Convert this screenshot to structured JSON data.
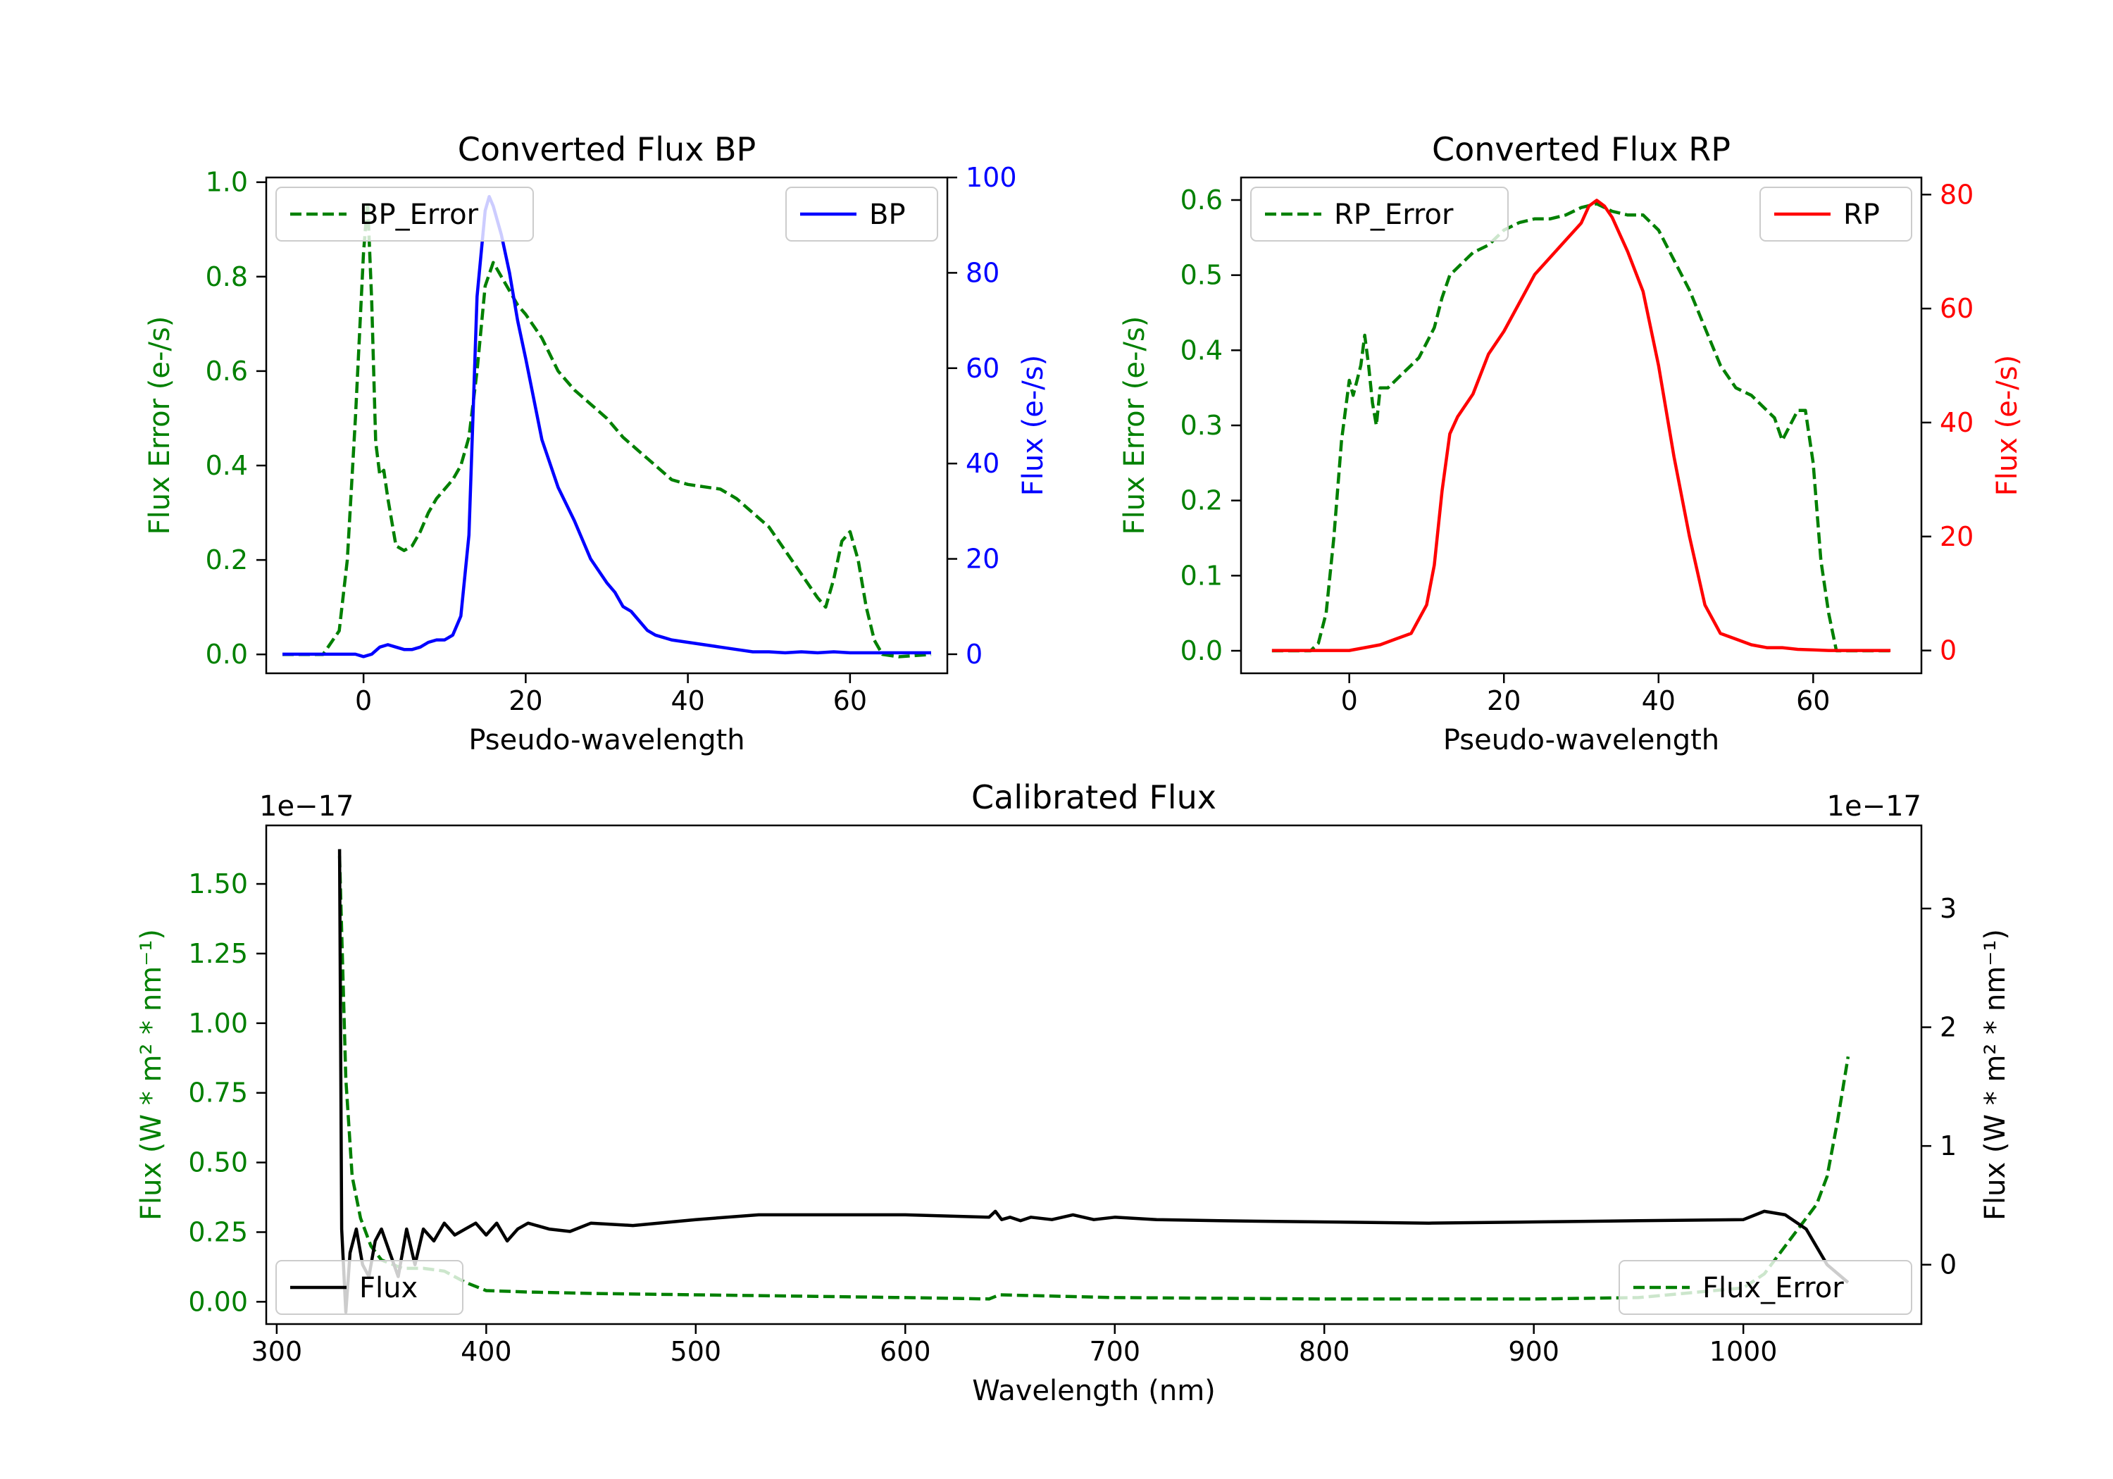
{
  "colors": {
    "error": "#008000",
    "bp": "#0000ff",
    "rp": "#ff0000",
    "flux": "#000000"
  },
  "chart_data": [
    {
      "type": "line",
      "title": "Converted Flux BP",
      "xlabel": "Pseudo-wavelength",
      "ylabel_left": "Flux Error (e-/s)",
      "ylabel_right": "Flux (e-/s)",
      "xlim": [
        -12,
        72
      ],
      "xticks": [
        0,
        20,
        40,
        60
      ],
      "ylim_left": [
        -0.04,
        1.01
      ],
      "yticks_left": [
        "0.0",
        "0.2",
        "0.4",
        "0.6",
        "0.8",
        "1.0"
      ],
      "ylim_right": [
        -4,
        100
      ],
      "yticks_right": [
        "0",
        "20",
        "40",
        "60",
        "80",
        "100"
      ],
      "series": [
        {
          "name": "BP_Error",
          "axis": "left",
          "style": "dashed",
          "color": "error",
          "x": [
            -10,
            -5,
            -3,
            -2,
            -1,
            0,
            0.5,
            1,
            1.5,
            2,
            2.5,
            3,
            4,
            5,
            6,
            7,
            8,
            9,
            10,
            11,
            12,
            13,
            14,
            15,
            16,
            17,
            18,
            19,
            20,
            22,
            24,
            26,
            28,
            30,
            32,
            34,
            36,
            38,
            40,
            42,
            44,
            46,
            48,
            50,
            52,
            54,
            56,
            57,
            58,
            59,
            60,
            61,
            62,
            63,
            64,
            66,
            70
          ],
          "values": [
            0.0,
            0.0,
            0.05,
            0.2,
            0.5,
            0.85,
            0.96,
            0.75,
            0.45,
            0.38,
            0.39,
            0.33,
            0.23,
            0.22,
            0.23,
            0.26,
            0.3,
            0.33,
            0.35,
            0.37,
            0.4,
            0.46,
            0.6,
            0.78,
            0.83,
            0.8,
            0.77,
            0.74,
            0.72,
            0.67,
            0.6,
            0.56,
            0.53,
            0.5,
            0.46,
            0.43,
            0.4,
            0.37,
            0.36,
            0.355,
            0.35,
            0.33,
            0.3,
            0.27,
            0.22,
            0.17,
            0.12,
            0.1,
            0.16,
            0.24,
            0.26,
            0.2,
            0.1,
            0.03,
            0.0,
            -0.005,
            0.0
          ]
        },
        {
          "name": "BP",
          "axis": "right",
          "style": "solid",
          "color": "bp",
          "x": [
            -10,
            -5,
            -1,
            0,
            1,
            2,
            3,
            4,
            5,
            6,
            7,
            8,
            9,
            10,
            11,
            12,
            13,
            14,
            15,
            15.5,
            16,
            17,
            18,
            19,
            20,
            22,
            24,
            26,
            28,
            30,
            31,
            32,
            33,
            34,
            35,
            36,
            37,
            38,
            40,
            42,
            44,
            46,
            48,
            50,
            52,
            54,
            56,
            58,
            60,
            62,
            64,
            66,
            70
          ],
          "values": [
            0,
            0,
            0,
            -0.5,
            0,
            1.5,
            2,
            1.5,
            1,
            1,
            1.5,
            2.5,
            3,
            3,
            4,
            8,
            25,
            75,
            93,
            96,
            94,
            88,
            80,
            70,
            62,
            45,
            35,
            28,
            20,
            15,
            13,
            10,
            9,
            7,
            5,
            4,
            3.5,
            3,
            2.5,
            2,
            1.5,
            1,
            0.5,
            0.5,
            0.3,
            0.5,
            0.3,
            0.5,
            0.3,
            0.3,
            0.3,
            0.3,
            0.3
          ]
        }
      ],
      "legend": [
        {
          "label": "BP_Error",
          "position": "upper-left"
        },
        {
          "label": "BP",
          "position": "upper-right"
        }
      ]
    },
    {
      "type": "line",
      "title": "Converted Flux RP",
      "xlabel": "Pseudo-wavelength",
      "ylabel_left": "Flux Error (e-/s)",
      "ylabel_right": "Flux (e-/s)",
      "xlim": [
        -14,
        74
      ],
      "xticks": [
        0,
        20,
        40,
        60
      ],
      "ylim_left": [
        -0.03,
        0.63
      ],
      "yticks_left": [
        "0.0",
        "0.1",
        "0.2",
        "0.3",
        "0.4",
        "0.5",
        "0.6"
      ],
      "ylim_right": [
        -4,
        83
      ],
      "yticks_right": [
        "0",
        "20",
        "40",
        "60",
        "80"
      ],
      "series": [
        {
          "name": "RP_Error",
          "axis": "left",
          "style": "dashed",
          "color": "error",
          "x": [
            -10,
            -5,
            -4,
            -3,
            -2,
            -1,
            0,
            0.5,
            1,
            1.5,
            2,
            2.5,
            3,
            3.5,
            4,
            5,
            6,
            7,
            8,
            9,
            10,
            11,
            12,
            13,
            14,
            15,
            16,
            18,
            20,
            22,
            24,
            26,
            28,
            30,
            32,
            34,
            36,
            38,
            40,
            42,
            44,
            46,
            48,
            50,
            52,
            54,
            55,
            56,
            57,
            58,
            59,
            60,
            61,
            62,
            63,
            64,
            66,
            70
          ],
          "values": [
            0.0,
            0.0,
            0.01,
            0.05,
            0.15,
            0.28,
            0.36,
            0.34,
            0.36,
            0.38,
            0.42,
            0.38,
            0.33,
            0.3,
            0.35,
            0.35,
            0.36,
            0.37,
            0.38,
            0.39,
            0.41,
            0.43,
            0.47,
            0.5,
            0.51,
            0.52,
            0.53,
            0.54,
            0.56,
            0.57,
            0.575,
            0.575,
            0.58,
            0.59,
            0.595,
            0.585,
            0.58,
            0.58,
            0.56,
            0.52,
            0.48,
            0.43,
            0.38,
            0.35,
            0.34,
            0.32,
            0.31,
            0.28,
            0.3,
            0.32,
            0.32,
            0.25,
            0.12,
            0.05,
            0.0,
            0.0,
            0.0,
            0.0
          ]
        },
        {
          "name": "RP",
          "axis": "right",
          "style": "solid",
          "color": "rp",
          "x": [
            -10,
            -5,
            0,
            2,
            4,
            6,
            8,
            10,
            11,
            12,
            13,
            14,
            16,
            18,
            20,
            22,
            24,
            26,
            28,
            30,
            31,
            32,
            33,
            34,
            35,
            36,
            38,
            40,
            42,
            44,
            46,
            48,
            50,
            52,
            54,
            56,
            58,
            60,
            62,
            66,
            70
          ],
          "values": [
            0,
            0,
            0,
            0.5,
            1,
            2,
            3,
            8,
            15,
            28,
            38,
            41,
            45,
            52,
            56,
            61,
            66,
            69,
            72,
            75,
            78,
            79,
            78,
            76,
            73,
            70,
            63,
            50,
            34,
            20,
            8,
            3,
            2,
            1,
            0.5,
            0.5,
            0.2,
            0.1,
            0,
            0,
            0
          ]
        }
      ],
      "legend": [
        {
          "label": "RP_Error",
          "position": "upper-left"
        },
        {
          "label": "RP",
          "position": "upper-right"
        }
      ]
    },
    {
      "type": "line",
      "title": "Calibrated Flux",
      "xlabel": "Wavelength (nm)",
      "ylabel_left": "Flux (W * m² * nm⁻¹)",
      "ylabel_right": "Flux (W * m² * nm⁻¹)",
      "offset_left": "1e−17",
      "offset_right": "1e−17",
      "xlim": [
        295,
        1085
      ],
      "xticks": [
        300,
        400,
        500,
        600,
        700,
        800,
        900,
        1000
      ],
      "ylim_left": [
        -0.08,
        1.71
      ],
      "yticks_left": [
        "0.00",
        "0.25",
        "0.50",
        "0.75",
        "1.00",
        "1.25",
        "1.50"
      ],
      "ylim_right": [
        -0.5,
        3.7
      ],
      "yticks_right": [
        "0",
        "1",
        "2",
        "3"
      ],
      "series": [
        {
          "name": "Flux_Error",
          "axis": "left",
          "style": "dashed",
          "color": "error",
          "x": [
            330,
            333,
            336,
            340,
            345,
            350,
            360,
            370,
            380,
            390,
            400,
            420,
            450,
            500,
            550,
            600,
            640,
            645,
            700,
            800,
            900,
            950,
            1000,
            1010,
            1020,
            1030,
            1035,
            1040,
            1045,
            1050
          ],
          "values": [
            1.6,
            0.8,
            0.45,
            0.3,
            0.2,
            0.15,
            0.12,
            0.12,
            0.11,
            0.07,
            0.04,
            0.035,
            0.03,
            0.025,
            0.02,
            0.015,
            0.01,
            0.025,
            0.015,
            0.01,
            0.01,
            0.015,
            0.05,
            0.1,
            0.2,
            0.3,
            0.35,
            0.45,
            0.65,
            0.88
          ]
        },
        {
          "name": "Flux",
          "axis": "right",
          "style": "solid",
          "color": "flux",
          "x": [
            330,
            331,
            333,
            335,
            338,
            341,
            344,
            347,
            350,
            354,
            358,
            362,
            366,
            370,
            375,
            380,
            385,
            390,
            395,
            400,
            405,
            410,
            415,
            420,
            430,
            440,
            450,
            470,
            500,
            530,
            570,
            600,
            640,
            643,
            646,
            650,
            655,
            660,
            670,
            680,
            690,
            700,
            720,
            750,
            800,
            850,
            900,
            950,
            1000,
            1010,
            1020,
            1030,
            1040,
            1050
          ],
          "values": [
            3.5,
            0.3,
            -0.4,
            0.1,
            0.3,
            0.0,
            -0.1,
            0.2,
            0.3,
            0.1,
            -0.1,
            0.3,
            0.0,
            0.3,
            0.2,
            0.35,
            0.25,
            0.3,
            0.35,
            0.25,
            0.35,
            0.2,
            0.3,
            0.35,
            0.3,
            0.28,
            0.35,
            0.33,
            0.38,
            0.42,
            0.42,
            0.42,
            0.4,
            0.45,
            0.38,
            0.4,
            0.37,
            0.4,
            0.38,
            0.42,
            0.38,
            0.4,
            0.38,
            0.37,
            0.36,
            0.35,
            0.36,
            0.37,
            0.38,
            0.45,
            0.42,
            0.3,
            0.0,
            -0.15
          ]
        }
      ],
      "legend": [
        {
          "label": "Flux",
          "position": "lower-left"
        },
        {
          "label": "Flux_Error",
          "position": "lower-right"
        }
      ]
    }
  ]
}
